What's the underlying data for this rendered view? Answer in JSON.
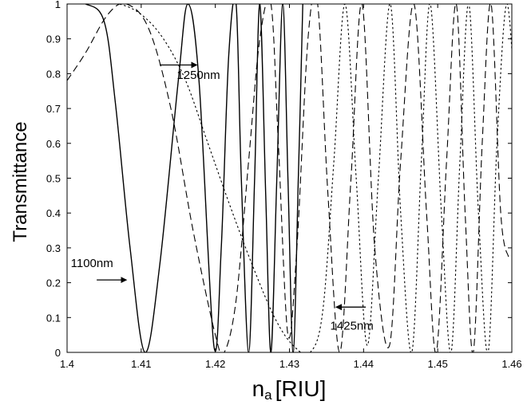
{
  "chart_data": {
    "type": "line",
    "title": "",
    "xlabel_main": "n",
    "xlabel_sub": "a",
    "xlabel_unit": "[RIU]",
    "ylabel": "Transmittance",
    "xlim": [
      1.4,
      1.46
    ],
    "ylim": [
      0,
      1
    ],
    "x_ticks": [
      "1.4",
      "1.41",
      "1.42",
      "1.43",
      "1.44",
      "1.45",
      "1.46"
    ],
    "y_ticks": [
      "0",
      "0.1",
      "0.2",
      "0.3",
      "0.4",
      "0.5",
      "0.6",
      "0.7",
      "0.8",
      "0.9",
      "1"
    ],
    "grid": false,
    "legend": "none",
    "series": [
      {
        "style": "solid",
        "x": [
          1.4,
          1.4025,
          1.405,
          1.4065,
          1.4085,
          1.4105,
          1.4125,
          1.415,
          1.4163,
          1.4178,
          1.4198,
          1.4208,
          1.4218,
          1.4228,
          1.4235,
          1.4245,
          1.4253,
          1.426,
          1.4268,
          1.4275,
          1.4283,
          1.4291,
          1.4298,
          1.4305,
          1.4312,
          1.4318
        ],
        "y": [
          1.0,
          1.0,
          0.95,
          0.72,
          0.3,
          0.0,
          0.25,
          0.78,
          1.0,
          0.78,
          0.02,
          0.3,
          0.85,
          1.0,
          0.5,
          0.0,
          0.5,
          1.0,
          0.45,
          0.0,
          0.5,
          1.0,
          0.5,
          0.0,
          0.5,
          1.0
        ]
      },
      {
        "style": "dashed",
        "x": [
          1.4,
          1.4025,
          1.4055,
          1.408,
          1.411,
          1.414,
          1.417,
          1.42,
          1.4212,
          1.4228,
          1.4245,
          1.426,
          1.4275,
          1.4285,
          1.4298,
          1.431,
          1.4325,
          1.4338,
          1.4352,
          1.4368,
          1.4383,
          1.4398,
          1.4415,
          1.4435,
          1.445,
          1.4468,
          1.4485,
          1.4498,
          1.4512,
          1.4525,
          1.4537,
          1.4548,
          1.456,
          1.4572,
          1.4585,
          1.4596
        ],
        "y": [
          0.78,
          0.86,
          0.97,
          1.0,
          0.93,
          0.7,
          0.35,
          0.05,
          0.0,
          0.15,
          0.55,
          0.9,
          1.0,
          0.6,
          0.05,
          0.3,
          0.9,
          1.0,
          0.45,
          0.0,
          0.5,
          1.0,
          0.3,
          0.02,
          0.55,
          1.0,
          0.4,
          0.0,
          0.55,
          1.0,
          0.4,
          0.0,
          0.6,
          1.0,
          0.4,
          0.27
        ]
      },
      {
        "style": "dotted",
        "x": [
          1.4,
          1.404,
          1.407,
          1.41,
          1.413,
          1.416,
          1.419,
          1.422,
          1.425,
          1.428,
          1.4305,
          1.4328,
          1.4345,
          1.436,
          1.4375,
          1.439,
          1.4405,
          1.442,
          1.4436,
          1.445,
          1.4465,
          1.4478,
          1.449,
          1.4505,
          1.4518,
          1.453,
          1.4542,
          1.4555,
          1.4568,
          1.458,
          1.4593,
          1.4605
        ],
        "y": [
          1.0,
          1.0,
          1.0,
          0.97,
          0.9,
          0.78,
          0.6,
          0.42,
          0.25,
          0.1,
          0.02,
          0.0,
          0.12,
          0.55,
          1.0,
          0.5,
          0.02,
          0.5,
          1.0,
          0.4,
          0.0,
          0.55,
          1.0,
          0.4,
          0.0,
          0.55,
          1.0,
          0.4,
          0.0,
          0.6,
          1.0,
          0.7
        ]
      }
    ],
    "annotations": [
      {
        "text": "1250nm",
        "x": 1.4148,
        "y": 0.785,
        "arrow_from": [
          1.4125,
          0.825
        ],
        "arrow_to": [
          1.4175,
          0.825
        ]
      },
      {
        "text": "1100nm",
        "x": 1.4005,
        "y": 0.245,
        "arrow_from": [
          1.404,
          0.208
        ],
        "arrow_to": [
          1.408,
          0.208
        ]
      },
      {
        "text": "1425nm",
        "x": 1.4355,
        "y": 0.065,
        "arrow_from": [
          1.4403,
          0.13
        ],
        "arrow_to": [
          1.4363,
          0.13
        ]
      }
    ]
  }
}
